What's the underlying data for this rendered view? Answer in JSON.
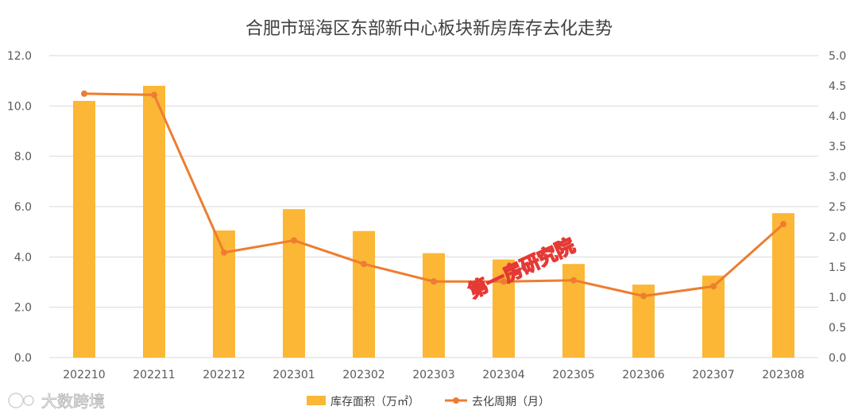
{
  "chart_data": {
    "type": "bar",
    "title": "合肥市瑶海区东部新中心板块新房库存去化走势",
    "categories": [
      "202210",
      "202211",
      "202212",
      "202301",
      "202302",
      "202303",
      "202304",
      "202305",
      "202306",
      "202307",
      "202308"
    ],
    "series": [
      {
        "name": "库存面积（万㎡）",
        "type": "bar",
        "axis": "left",
        "color": "#FBB735",
        "values": [
          10.2,
          10.8,
          5.05,
          5.9,
          5.03,
          4.15,
          3.9,
          3.72,
          2.9,
          3.26,
          5.74
        ]
      },
      {
        "name": "去化周期（月）",
        "type": "line",
        "axis": "right",
        "color": "#ED7D31",
        "values": [
          4.37,
          4.35,
          1.74,
          1.94,
          1.55,
          1.26,
          1.26,
          1.28,
          1.02,
          1.18,
          2.21
        ]
      }
    ],
    "y_left": {
      "min": 0,
      "max": 12,
      "ticks": [
        "0.0",
        "2.0",
        "4.0",
        "6.0",
        "8.0",
        "10.0",
        "12.0"
      ]
    },
    "y_right": {
      "min": 0,
      "max": 5,
      "ticks": [
        "0.0",
        "0.5",
        "1.0",
        "1.5",
        "2.0",
        "2.5",
        "3.0",
        "3.5",
        "4.0",
        "4.5",
        "5.0"
      ]
    },
    "grid": true,
    "legend_position": "bottom"
  },
  "watermark": {
    "text": "第一房研究院"
  },
  "corner_logo": {
    "text": "大数跨境"
  },
  "colors": {
    "gridline": "#d9d9d9",
    "text": "#595959"
  }
}
